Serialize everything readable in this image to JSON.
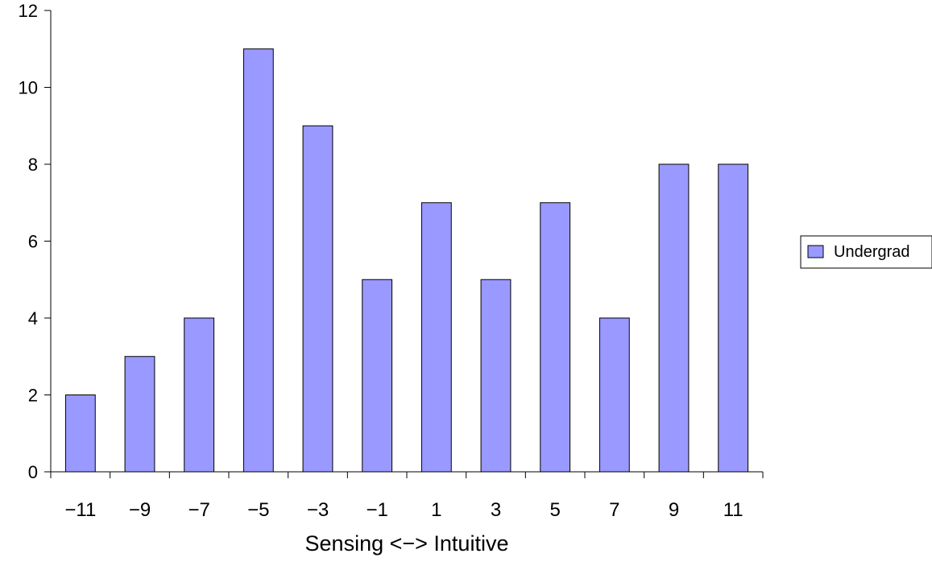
{
  "chart_data": {
    "type": "bar",
    "title": "",
    "xlabel": "Sensing <−> Intuitive",
    "ylabel": "",
    "categories": [
      "−11",
      "−9",
      "−7",
      "−5",
      "−3",
      "−1",
      "1",
      "3",
      "5",
      "7",
      "9",
      "11"
    ],
    "series": [
      {
        "name": "Undergrad",
        "values": [
          2,
          3,
          4,
          11,
          9,
          5,
          7,
          5,
          7,
          4,
          8,
          8
        ],
        "color": "#9999ff"
      }
    ],
    "ylim": [
      0,
      12
    ],
    "yticks": [
      0,
      2,
      4,
      6,
      8,
      10,
      12
    ],
    "grid": false,
    "legend": "right"
  }
}
